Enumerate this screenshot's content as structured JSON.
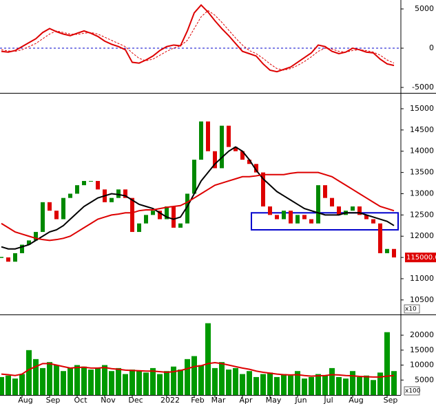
{
  "chart_data": [
    {
      "type": "line",
      "ylim": [
        -5610,
        6140
      ],
      "yticks": [
        -5000,
        0,
        5000
      ],
      "zero_line": 0,
      "zero_line_color": "#0000cc",
      "series": [
        {
          "color": "#dd0000",
          "values": [
            -400,
            -500,
            -300,
            200,
            700,
            1200,
            2000,
            2500,
            2100,
            1800,
            1600,
            1900,
            2200,
            1900,
            1500,
            900,
            500,
            200,
            -200,
            -1800,
            -1900,
            -1500,
            -1000,
            -300,
            200,
            400,
            300,
            2200,
            4500,
            5500,
            4600,
            3500,
            2500,
            1600,
            600,
            -400,
            -700,
            -1000,
            -2000,
            -2800,
            -3000,
            -2700,
            -2400,
            -1800,
            -1200,
            -600,
            400,
            200,
            -400,
            -700,
            -500,
            0,
            -200,
            -500,
            -600,
            -1400,
            -2000,
            -2200
          ]
        },
        {
          "color": "#dd0000",
          "dash": true,
          "values": [
            -200,
            -350,
            -400,
            -200,
            200,
            600,
            1200,
            1800,
            2200,
            2000,
            1800,
            1750,
            1900,
            2000,
            1800,
            1400,
            1000,
            600,
            200,
            -600,
            -1300,
            -1600,
            -1400,
            -900,
            -400,
            0,
            300,
            1000,
            2500,
            4000,
            4800,
            4200,
            3300,
            2300,
            1300,
            400,
            -300,
            -700,
            -1300,
            -2000,
            -2600,
            -2800,
            -2600,
            -2200,
            -1700,
            -1100,
            -400,
            0,
            -100,
            -400,
            -500,
            -300,
            -200,
            -300,
            -500,
            -900,
            -1500,
            -1900
          ]
        }
      ]
    },
    {
      "type": "candlestick",
      "ylim": [
        10190,
        15340
      ],
      "yticks": [
        10500,
        11000,
        11500,
        12000,
        12500,
        13000,
        13500,
        14000,
        14500,
        15000
      ],
      "unit_label": "x10",
      "last_label": "115000.0",
      "last_label_color": "#dd0000",
      "up_color": "#008800",
      "down_color": "#dd0000",
      "support_zone": [
        12150,
        12550
      ],
      "zone_color": "#0000cc",
      "values": [
        11500,
        11400,
        11600,
        11800,
        11900,
        12100,
        12800,
        12600,
        12400,
        12900,
        13000,
        13200,
        13300,
        13300,
        13100,
        12800,
        12900,
        13100,
        12900,
        12100,
        12300,
        12500,
        12600,
        12400,
        12700,
        12200,
        12300,
        13000,
        13800,
        14700,
        14000,
        13600,
        14600,
        14100,
        14000,
        13800,
        13700,
        13500,
        12700,
        12500,
        12400,
        12600,
        12300,
        12500,
        12400,
        12300,
        13200,
        12900,
        12700,
        12500,
        12600,
        12700,
        12500,
        12400,
        12300,
        11600,
        11700,
        11500
      ],
      "series": [
        {
          "color": "#000000",
          "values": [
            11750,
            11700,
            11700,
            11750,
            11800,
            11900,
            12000,
            12100,
            12150,
            12250,
            12400,
            12550,
            12700,
            12800,
            12900,
            12950,
            13000,
            12980,
            12950,
            12850,
            12750,
            12700,
            12650,
            12550,
            12450,
            12400,
            12450,
            12700,
            13000,
            13300,
            13500,
            13700,
            13850,
            14000,
            14100,
            14000,
            13800,
            13550,
            13350,
            13200,
            13050,
            12950,
            12850,
            12750,
            12650,
            12600,
            12550,
            12500,
            12500,
            12500,
            12550,
            12550,
            12550,
            12500,
            12450,
            12400,
            12350,
            12250
          ]
        },
        {
          "color": "#dd0000",
          "values": [
            12300,
            12200,
            12100,
            12050,
            12000,
            11950,
            11920,
            11900,
            11920,
            11950,
            12000,
            12100,
            12200,
            12300,
            12400,
            12450,
            12500,
            12520,
            12550,
            12550,
            12600,
            12620,
            12620,
            12650,
            12680,
            12700,
            12720,
            12800,
            12900,
            13000,
            13100,
            13200,
            13250,
            13300,
            13350,
            13400,
            13400,
            13420,
            13450,
            13450,
            13450,
            13450,
            13480,
            13500,
            13500,
            13500,
            13500,
            13450,
            13400,
            13300,
            13200,
            13100,
            13000,
            12900,
            12800,
            12700,
            12650,
            12600
          ]
        }
      ]
    },
    {
      "type": "bar",
      "ylim": [
        0,
        26000
      ],
      "yticks": [
        5000,
        10000,
        15000,
        20000
      ],
      "unit_label": "x100",
      "color": "#009900",
      "categories": [
        null,
        null,
        null,
        "Aug",
        null,
        null,
        null,
        "Sep",
        null,
        null,
        null,
        "Oct",
        null,
        null,
        null,
        "Nov",
        null,
        null,
        null,
        "Dec",
        null,
        null,
        null,
        null,
        "2022",
        null,
        null,
        null,
        "Feb",
        null,
        null,
        "Mar",
        null,
        null,
        null,
        "Apr",
        null,
        null,
        null,
        "May",
        null,
        null,
        null,
        "Jun",
        null,
        null,
        null,
        "Jul",
        null,
        null,
        null,
        "Aug",
        null,
        null,
        null,
        null,
        "Sep",
        null
      ],
      "values": [
        6000,
        6500,
        5500,
        7000,
        15000,
        12000,
        9000,
        11000,
        10000,
        8000,
        9000,
        10000,
        9500,
        8500,
        9000,
        10000,
        8000,
        9000,
        7000,
        8500,
        8000,
        7500,
        9000,
        7000,
        8000,
        9500,
        8500,
        12000,
        13000,
        10000,
        24000,
        9000,
        11000,
        8500,
        9000,
        7000,
        8000,
        6000,
        7000,
        7500,
        6000,
        7000,
        6500,
        8000,
        5500,
        6000,
        7000,
        6500,
        9000,
        6000,
        5500,
        8000,
        6000,
        6500,
        5000,
        7500,
        21000,
        8000
      ],
      "series": [
        {
          "color": "#dd0000",
          "values": [
            7000,
            6800,
            6500,
            7000,
            8500,
            9500,
            10500,
            10500,
            10000,
            9500,
            9000,
            9200,
            9300,
            9000,
            9000,
            9200,
            8800,
            8600,
            8300,
            8200,
            8100,
            8000,
            8000,
            7800,
            7600,
            7800,
            8200,
            8800,
            9500,
            9800,
            10500,
            10800,
            10500,
            10000,
            9500,
            9000,
            8600,
            8000,
            7600,
            7300,
            7000,
            6800,
            6700,
            6800,
            6500,
            6300,
            6400,
            6500,
            6800,
            6700,
            6500,
            6400,
            6200,
            6100,
            6000,
            6000,
            6300,
            6500
          ]
        }
      ]
    }
  ]
}
